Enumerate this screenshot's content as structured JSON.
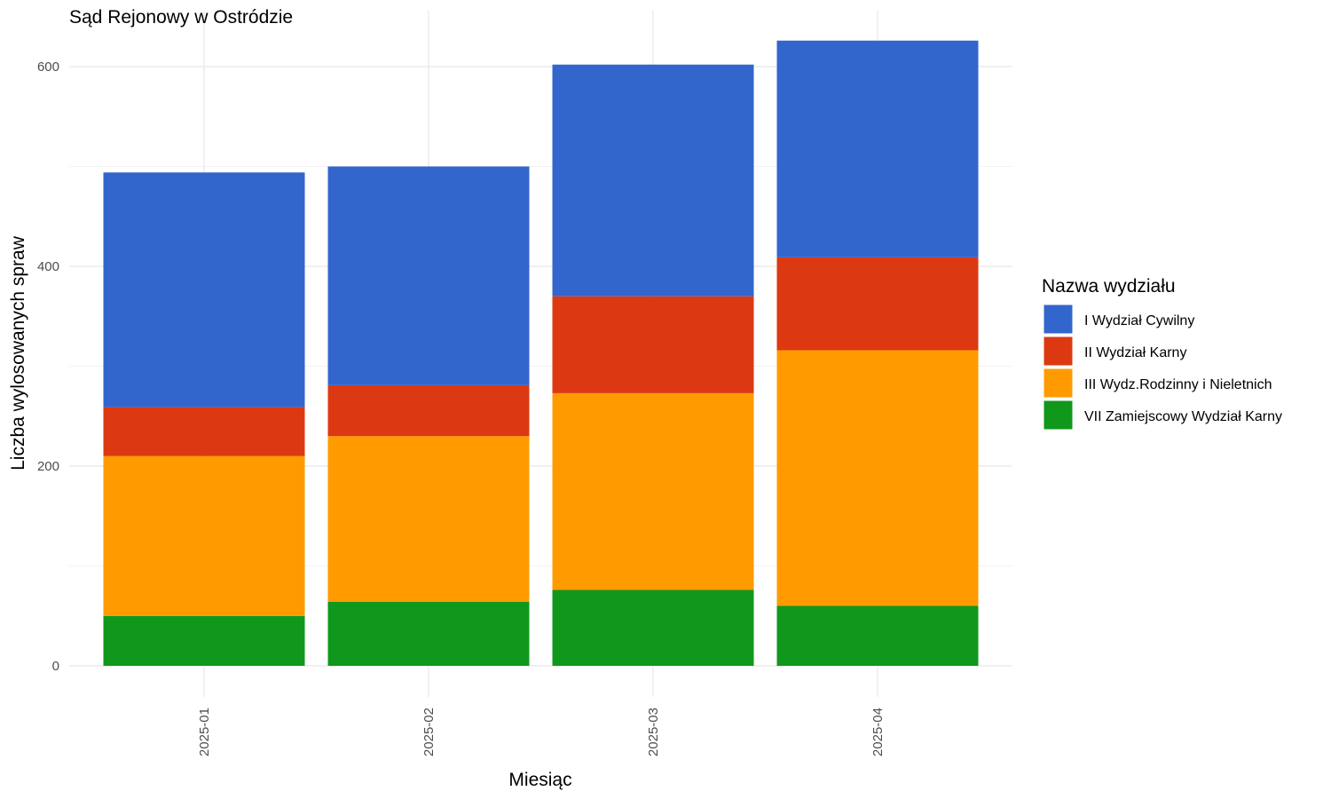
{
  "chart_data": {
    "type": "bar",
    "stacked": true,
    "title": "Sąd Rejonowy w Ostródzie",
    "xlabel": "Miesiąc",
    "ylabel": "Liczba wylosowanych spraw",
    "categories": [
      "2025-01",
      "2025-02",
      "2025-03",
      "2025-04"
    ],
    "ylim": [
      0,
      640
    ],
    "yticks": [
      0,
      200,
      400,
      600
    ],
    "grid": true,
    "legend": {
      "title": "Nazwa wydziału",
      "position": "right"
    },
    "series": [
      {
        "name": "VII Zamiejscowy Wydział Karny",
        "color": "#10981c",
        "values": [
          50,
          64,
          76,
          60
        ]
      },
      {
        "name": "III Wydz.Rodzinny i Nieletnich",
        "color": "#ff9b00",
        "values": [
          160,
          166,
          197,
          256
        ]
      },
      {
        "name": "II Wydział Karny",
        "color": "#dc3912",
        "values": [
          49,
          51,
          97,
          93
        ]
      },
      {
        "name": "I Wydział Cywilny",
        "color": "#3366cc",
        "values": [
          235,
          219,
          232,
          217
        ]
      }
    ],
    "legend_order": [
      "I Wydział Cywilny",
      "II Wydział Karny",
      "III Wydz.Rodzinny i Nieletnich",
      "VII Zamiejscowy Wydział Karny"
    ]
  }
}
